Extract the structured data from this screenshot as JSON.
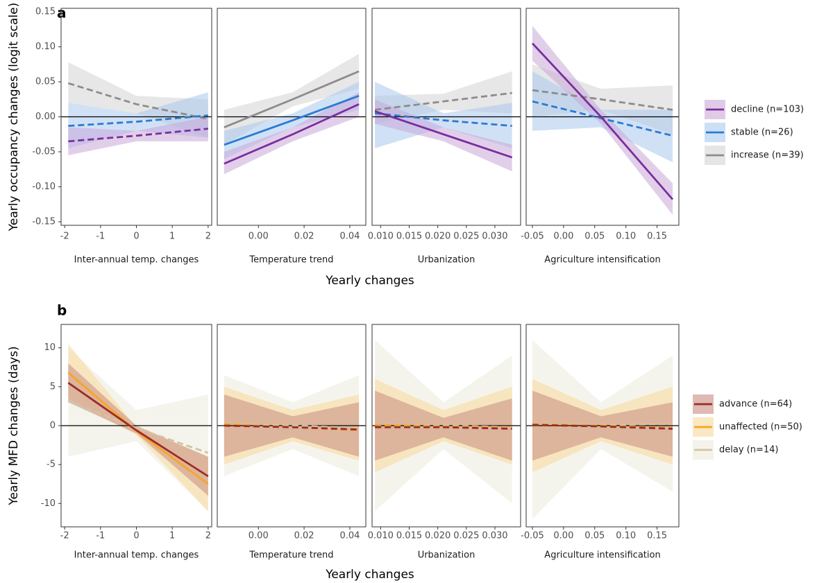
{
  "chart_data": [
    {
      "type": "line",
      "label": "a",
      "ylabel": "Yearly occupancy changes (logit scale)",
      "xlabel": "Yearly changes",
      "ylim": [
        -0.155,
        0.155
      ],
      "yticks": [
        -0.15,
        {
          "value": -0.1,
          "label": "-0.10"
        },
        -0.05,
        {
          "value": 0,
          "label": "0.00"
        },
        0.05,
        {
          "value": 0.1,
          "label": "0.10"
        },
        0.15
      ],
      "reference_line": 0,
      "series": [
        {
          "name": "decline (n=103)",
          "color": "#7b2d9e",
          "band_color": "#c9a8d9"
        },
        {
          "name": "stable (n=26)",
          "color": "#2a7bd0",
          "band_color": "#a9c9ee"
        },
        {
          "name": "increase (n=39)",
          "color": "#8c8c8c",
          "band_color": "#d4d4d4"
        }
      ],
      "facets": [
        {
          "title": "Inter-annual temp. changes",
          "xlim": [
            -2.1,
            2.1
          ],
          "xticks": [
            -2,
            -1,
            0,
            1,
            2
          ],
          "x": [
            -1.9,
            0,
            2
          ],
          "lines": [
            {
              "dashed": true,
              "values": [
                -0.035,
                -0.027,
                -0.017
              ],
              "lower": [
                -0.055,
                -0.035,
                -0.035
              ],
              "upper": [
                -0.015,
                -0.02,
                0.0
              ]
            },
            {
              "dashed": true,
              "values": [
                -0.013,
                -0.007,
                0.002
              ],
              "lower": [
                -0.045,
                -0.02,
                -0.03
              ],
              "upper": [
                0.02,
                0.005,
                0.035
              ]
            },
            {
              "dashed": true,
              "values": [
                0.048,
                0.018,
                -0.003
              ],
              "lower": [
                0.02,
                0.005,
                -0.03
              ],
              "upper": [
                0.078,
                0.03,
                0.025
              ]
            }
          ]
        },
        {
          "title": "Temperature trend",
          "xlim": [
            -0.018,
            0.047
          ],
          "xticks": [
            {
              "value": 0,
              "label": "0.00"
            },
            0.02,
            0.04
          ],
          "x": [
            -0.015,
            0.015,
            0.044
          ],
          "lines": [
            {
              "dashed": false,
              "values": [
                -0.067,
                -0.025,
                0.018
              ],
              "lower": [
                -0.082,
                -0.035,
                0.0
              ],
              "upper": [
                -0.05,
                -0.015,
                0.035
              ]
            },
            {
              "dashed": false,
              "values": [
                -0.04,
                -0.005,
                0.03
              ],
              "lower": [
                -0.06,
                -0.015,
                0.01
              ],
              "upper": [
                -0.02,
                0.005,
                0.05
              ]
            },
            {
              "dashed": false,
              "values": [
                -0.015,
                0.025,
                0.065
              ],
              "lower": [
                -0.04,
                0.015,
                0.04
              ],
              "upper": [
                0.01,
                0.035,
                0.09
              ]
            }
          ]
        },
        {
          "title": "Urbanization",
          "xlim": [
            0.0085,
            0.0345
          ],
          "xticks": [
            {
              "value": 0.01,
              "label": "0.010"
            },
            0.015,
            {
              "value": 0.02,
              "label": "0.020"
            },
            0.025,
            {
              "value": 0.03,
              "label": "0.030"
            }
          ],
          "x": [
            0.009,
            0.021,
            0.033
          ],
          "lines": [
            {
              "dashed": false,
              "values": [
                0.008,
                -0.025,
                -0.058
              ],
              "lower": [
                -0.01,
                -0.035,
                -0.078
              ],
              "upper": [
                0.025,
                -0.015,
                -0.04
              ]
            },
            {
              "dashed": true,
              "values": [
                0.005,
                -0.005,
                -0.013
              ],
              "lower": [
                -0.045,
                -0.015,
                -0.045
              ],
              "upper": [
                0.05,
                0.005,
                0.02
              ]
            },
            {
              "dashed": true,
              "values": [
                0.01,
                0.022,
                0.034
              ],
              "lower": [
                -0.01,
                0.01,
                0.005
              ],
              "upper": [
                0.03,
                0.033,
                0.065
              ]
            }
          ]
        },
        {
          "title": "Agriculture intensification",
          "xlim": [
            -0.06,
            0.185
          ],
          "xticks": [
            -0.05,
            {
              "value": 0,
              "label": "0.00"
            },
            0.05,
            {
              "value": 0.1,
              "label": "0.10"
            },
            0.15
          ],
          "x": [
            -0.05,
            0.06,
            0.175
          ],
          "lines": [
            {
              "dashed": false,
              "values": [
                0.105,
                0.0,
                -0.118
              ],
              "lower": [
                0.08,
                -0.01,
                -0.14
              ],
              "upper": [
                0.13,
                0.01,
                -0.095
              ]
            },
            {
              "dashed": true,
              "values": [
                0.022,
                -0.002,
                -0.027
              ],
              "lower": [
                -0.02,
                -0.015,
                -0.065
              ],
              "upper": [
                0.065,
                0.01,
                0.01
              ]
            },
            {
              "dashed": true,
              "values": [
                0.038,
                0.025,
                0.01
              ],
              "lower": [
                0.0,
                0.01,
                -0.025
              ],
              "upper": [
                0.075,
                0.04,
                0.045
              ]
            }
          ]
        }
      ]
    },
    {
      "type": "line",
      "label": "b",
      "ylabel": "Yearly MFD changes (days)",
      "xlabel": "Yearly changes",
      "ylim": [
        -13,
        13
      ],
      "yticks": [
        -10,
        -5,
        0,
        5,
        10
      ],
      "reference_line": 0,
      "series": [
        {
          "name": "advance (n=64)",
          "color": "#9b2a2a",
          "band_color": "#c98c80"
        },
        {
          "name": "unaffected (n=50)",
          "color": "#f5a623",
          "band_color": "#f8d99a"
        },
        {
          "name": "delay (n=14)",
          "color": "#d2c4a0",
          "band_color": "#ecebdc"
        }
      ],
      "facets": [
        {
          "title": "Inter-annual temp. changes",
          "xlim": [
            -2.1,
            2.1
          ],
          "xticks": [
            -2,
            -1,
            0,
            1,
            2
          ],
          "x": [
            -1.9,
            0,
            2
          ],
          "lines": [
            {
              "dashed": false,
              "values": [
                5.5,
                -0.6,
                -6.5
              ],
              "lower": [
                3,
                -1,
                -9
              ],
              "upper": [
                8,
                0,
                -4
              ]
            },
            {
              "dashed": false,
              "values": [
                6.8,
                -0.7,
                -7.5
              ],
              "lower": [
                3.5,
                -1.2,
                -11
              ],
              "upper": [
                10.5,
                -0.2,
                -4
              ]
            },
            {
              "dashed": true,
              "values": [
                3.2,
                -0.3,
                -3.5
              ],
              "lower": [
                -4,
                -2,
                -11
              ],
              "upper": [
                10,
                2,
                4
              ]
            }
          ]
        },
        {
          "title": "Temperature trend",
          "xlim": [
            -0.018,
            0.047
          ],
          "xticks": [
            {
              "value": 0,
              "label": "0.00"
            },
            0.02,
            0.04
          ],
          "x": [
            -0.015,
            0.015,
            0.044
          ],
          "lines": [
            {
              "dashed": true,
              "values": [
                0,
                -0.2,
                -0.5
              ],
              "lower": [
                -4,
                -1.5,
                -4
              ],
              "upper": [
                4,
                1.2,
                3
              ]
            },
            {
              "dashed": true,
              "values": [
                0.2,
                -0.2,
                -0.6
              ],
              "lower": [
                -5,
                -2,
                -4.5
              ],
              "upper": [
                5,
                2,
                4
              ]
            },
            {
              "dashed": true,
              "values": [
                0.3,
                0,
                -0.3
              ],
              "lower": [
                -6.5,
                -3,
                -6.5
              ],
              "upper": [
                6.5,
                3,
                6.5
              ]
            }
          ]
        },
        {
          "title": "Urbanization",
          "xlim": [
            0.0085,
            0.0345
          ],
          "xticks": [
            {
              "value": 0.01,
              "label": "0.010"
            },
            0.015,
            {
              "value": 0.02,
              "label": "0.020"
            },
            0.025,
            {
              "value": 0.03,
              "label": "0.030"
            }
          ],
          "x": [
            0.009,
            0.021,
            0.033
          ],
          "lines": [
            {
              "dashed": true,
              "values": [
                -0.2,
                -0.2,
                -0.4
              ],
              "lower": [
                -4.5,
                -1.5,
                -4.5
              ],
              "upper": [
                4.5,
                1,
                3.5
              ]
            },
            {
              "dashed": true,
              "values": [
                0.1,
                -0.1,
                -0.3
              ],
              "lower": [
                -6,
                -2,
                -5
              ],
              "upper": [
                6,
                2,
                5
              ]
            },
            {
              "dashed": true,
              "values": [
                0.2,
                0,
                -0.2
              ],
              "lower": [
                -11,
                -3,
                -10
              ],
              "upper": [
                11,
                3,
                9
              ]
            }
          ]
        },
        {
          "title": "Agriculture intensification",
          "xlim": [
            -0.06,
            0.185
          ],
          "xticks": [
            -0.05,
            {
              "value": 0,
              "label": "0.00"
            },
            0.05,
            {
              "value": 0.1,
              "label": "0.10"
            },
            0.15
          ],
          "x": [
            -0.05,
            0.06,
            0.175
          ],
          "lines": [
            {
              "dashed": true,
              "values": [
                0.1,
                -0.1,
                -0.4
              ],
              "lower": [
                -4.5,
                -1.5,
                -4
              ],
              "upper": [
                4.5,
                1.2,
                3
              ]
            },
            {
              "dashed": true,
              "values": [
                0.2,
                0,
                -0.3
              ],
              "lower": [
                -6,
                -2,
                -5
              ],
              "upper": [
                6,
                2,
                5
              ]
            },
            {
              "dashed": true,
              "values": [
                0.3,
                0.1,
                0.2
              ],
              "lower": [
                -12,
                -3,
                -8.5
              ],
              "upper": [
                11,
                3,
                9
              ]
            }
          ]
        }
      ]
    }
  ]
}
